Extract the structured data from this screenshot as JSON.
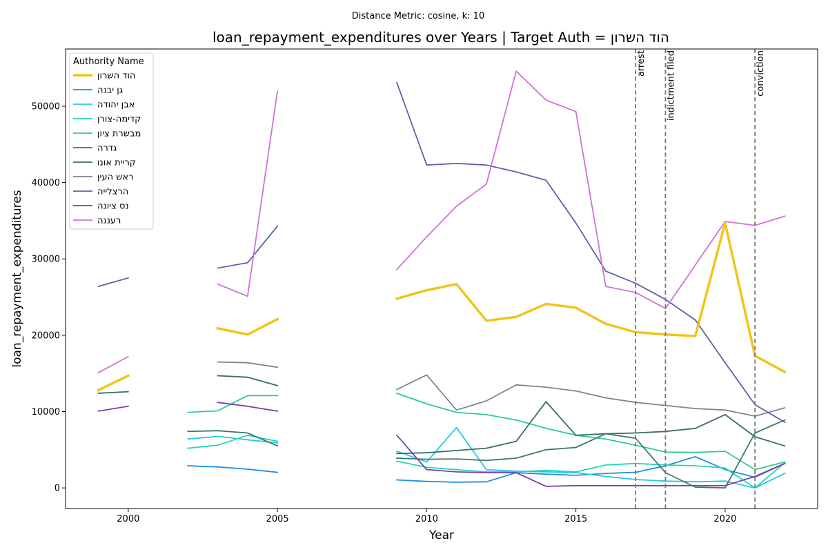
{
  "chart_data": {
    "type": "line",
    "suptitle": "Distance Metric: cosine, k: 10",
    "title": "loan_repayment_expenditures over Years | Target Auth = הוד השרון",
    "xlabel": "Year",
    "ylabel": "loan_repayment_expenditures",
    "xlim": [
      1997.9,
      2023.1
    ],
    "ylim": [
      -2700,
      57500
    ],
    "xticks": [
      2000,
      2005,
      2010,
      2015,
      2020
    ],
    "yticks": [
      0,
      10000,
      20000,
      30000,
      40000,
      50000
    ],
    "grid": false,
    "legend": {
      "title": "Authority Name",
      "placement": "top-left"
    },
    "events": [
      {
        "year": 2017,
        "label": "arrest"
      },
      {
        "year": 2018,
        "label": "indictment filed"
      },
      {
        "year": 2021,
        "label": "conviction"
      }
    ],
    "years": [
      1999,
      2000,
      2001,
      2002,
      2003,
      2004,
      2005,
      2006,
      2007,
      2008,
      2009,
      2010,
      2011,
      2012,
      2013,
      2014,
      2015,
      2016,
      2017,
      2018,
      2019,
      2020,
      2021,
      2022
    ],
    "series": [
      {
        "name": "הוד השרון",
        "color": "#f0c419",
        "target": true,
        "values": [
          12800,
          14700,
          null,
          null,
          20900,
          20100,
          22100,
          null,
          null,
          null,
          24800,
          25900,
          26700,
          21900,
          22400,
          24100,
          23600,
          21500,
          20400,
          20100,
          19900,
          34700,
          17300,
          15200
        ]
      },
      {
        "name": "גן יבנה",
        "color": "#1f8fe0",
        "values": [
          null,
          null,
          null,
          2900,
          2750,
          2450,
          2050,
          null,
          null,
          null,
          1050,
          850,
          750,
          800,
          2000,
          1800,
          1650,
          1900,
          2050,
          2900,
          4100,
          2400,
          1400,
          3200
        ]
      },
      {
        "name": "אבן יהודה",
        "color": "#22c8e8",
        "values": [
          null,
          null,
          null,
          6400,
          6750,
          6300,
          5900,
          null,
          null,
          null,
          4800,
          3400,
          7900,
          2400,
          2200,
          2100,
          2000,
          1500,
          1100,
          900,
          800,
          900,
          0,
          1900
        ]
      },
      {
        "name": "קדימה-צורן",
        "color": "#20d6b8",
        "values": [
          null,
          null,
          null,
          5200,
          5600,
          6900,
          6100,
          null,
          null,
          null,
          3500,
          2700,
          2400,
          2100,
          2100,
          2300,
          2100,
          3000,
          3200,
          3000,
          2900,
          2600,
          0,
          3300
        ]
      },
      {
        "name": "מבשרת ציון",
        "color": "#2ecc8a",
        "values": [
          null,
          null,
          null,
          9900,
          10100,
          12100,
          12100,
          null,
          null,
          null,
          12400,
          11000,
          9900,
          9600,
          8900,
          7800,
          6900,
          6400,
          5600,
          4700,
          4650,
          4800,
          2400,
          3400
        ]
      },
      {
        "name": "גדרה",
        "color": "#3c7a6a",
        "values": [
          null,
          null,
          null,
          7400,
          7500,
          7200,
          5500,
          null,
          null,
          null,
          3900,
          3750,
          3800,
          3600,
          3900,
          5000,
          5300,
          7100,
          6500,
          2000,
          100,
          0,
          7200,
          8900
        ]
      },
      {
        "name": "קריית אונו",
        "color": "#35705a",
        "values": [
          12400,
          12600,
          null,
          null,
          14700,
          14500,
          13400,
          null,
          null,
          null,
          4500,
          4600,
          4900,
          5200,
          6100,
          11300,
          6900,
          7100,
          7200,
          7400,
          7800,
          9600,
          6700,
          5500
        ]
      },
      {
        "name": "ראש העין",
        "color": "#7a8a84",
        "values": [
          null,
          null,
          null,
          null,
          16500,
          16400,
          15800,
          null,
          null,
          null,
          12900,
          14800,
          10200,
          11400,
          13500,
          13200,
          12700,
          11800,
          11200,
          10800,
          10400,
          10200,
          9400,
          10500
        ]
      },
      {
        "name": "הרצלייה",
        "color": "#6060a8",
        "values": [
          26400,
          27500,
          null,
          null,
          28800,
          29500,
          34300,
          null,
          null,
          null,
          53100,
          42300,
          42500,
          42300,
          41400,
          40300,
          34700,
          28400,
          26800,
          24700,
          22000,
          16400,
          10900,
          8600
        ]
      },
      {
        "name": "נס ציונה",
        "color": "#7a3fb0",
        "values": [
          10050,
          10700,
          null,
          null,
          11200,
          10700,
          10050,
          null,
          null,
          null,
          6900,
          2400,
          2100,
          2000,
          2000,
          200,
          300,
          300,
          300,
          300,
          300,
          300,
          1500,
          3200
        ]
      },
      {
        "name": "רעננה",
        "color": "#d070d8",
        "values": [
          15100,
          17200,
          null,
          null,
          26700,
          25100,
          52000,
          null,
          null,
          null,
          28600,
          32900,
          36900,
          39800,
          54600,
          50800,
          49300,
          26400,
          25600,
          23500,
          29200,
          34900,
          34400,
          35600
        ]
      }
    ]
  }
}
